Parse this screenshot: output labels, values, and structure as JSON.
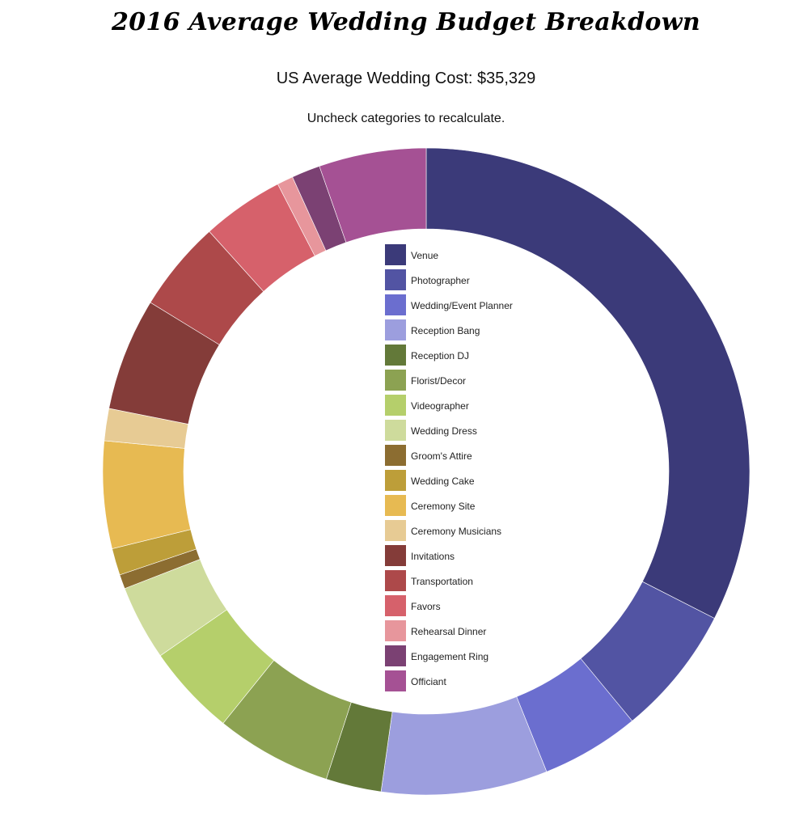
{
  "chart_data": {
    "type": "pie",
    "variant": "donut",
    "title": "2016 Average Wedding Budget Breakdown",
    "subtitle": "US Average Wedding Cost: $35,329",
    "instruction": "Uncheck categories to recalculate.",
    "legend_position": "center",
    "slices": [
      {
        "label": "Venue",
        "value": 36.4,
        "color": "#3b3a79"
      },
      {
        "label": "Photographer",
        "value": 7.3,
        "color": "#5254a3"
      },
      {
        "label": "Wedding/Event Planner",
        "value": 5.5,
        "color": "#6b6ecf"
      },
      {
        "label": "Reception Bang",
        "value": 9.3,
        "color": "#9c9ede"
      },
      {
        "label": "Reception DJ",
        "value": 3.1,
        "color": "#637939"
      },
      {
        "label": "Florist/Decor",
        "value": 6.5,
        "color": "#8ca252"
      },
      {
        "label": "Videographer",
        "value": 5.1,
        "color": "#b5cf6b"
      },
      {
        "label": "Wedding Dress",
        "value": 4.2,
        "color": "#cedb9c"
      },
      {
        "label": "Groom's Attire",
        "value": 0.8,
        "color": "#8c6d31"
      },
      {
        "label": "Wedding Cake",
        "value": 1.5,
        "color": "#bd9e39"
      },
      {
        "label": "Ceremony Site",
        "value": 6.0,
        "color": "#e7ba52"
      },
      {
        "label": "Ceremony Musicians",
        "value": 1.8,
        "color": "#e7cb94"
      },
      {
        "label": "Invitations",
        "value": 6.3,
        "color": "#843c39"
      },
      {
        "label": "Transportation",
        "value": 5.1,
        "color": "#ad494a"
      },
      {
        "label": "Favors",
        "value": 4.6,
        "color": "#d6616b"
      },
      {
        "label": "Rehearsal Dinner",
        "value": 0.9,
        "color": "#e7969c"
      },
      {
        "label": "Engagement Ring",
        "value": 1.6,
        "color": "#7b4173"
      },
      {
        "label": "Officiant",
        "value": 6.0,
        "color": "#a55194"
      }
    ]
  }
}
